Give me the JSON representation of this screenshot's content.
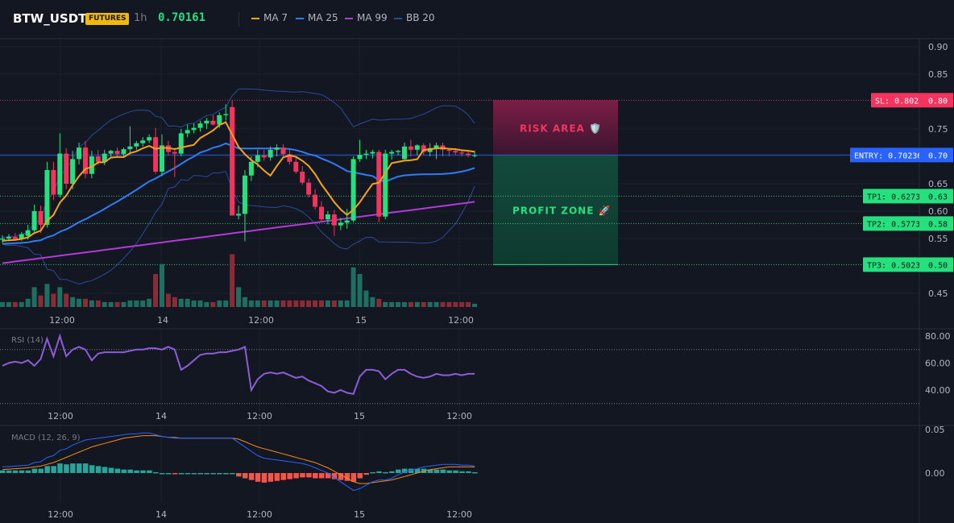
{
  "header": {
    "symbol": "BTW_USDT",
    "badge": "FUTURES",
    "timeframe": "1h",
    "last_price": "0.70161",
    "legend": [
      {
        "label": "MA 7",
        "color": "#f7a21b"
      },
      {
        "label": "MA 25",
        "color": "#2f7cf6"
      },
      {
        "label": "MA 99",
        "color": "#b23ad6"
      },
      {
        "label": "BB 20",
        "color": "#2b4a9a"
      }
    ]
  },
  "colors": {
    "background": "#131722",
    "grid": "#1e2230",
    "up": "#26e07f",
    "down": "#f2345e",
    "vol_up": "#1f6e62",
    "vol_down": "#8a2b36",
    "entry": "#2962ff",
    "sl": "#f2345e",
    "tp": "#26e07f",
    "rsi": "#8e5cd9",
    "macd": "#2962ff",
    "signal": "#f7891b",
    "hist_up": "#26a69a",
    "hist_down": "#f2564a"
  },
  "chart_data": {
    "type": "candlestick",
    "x_ticks": [
      "12:00",
      "14",
      "12:00",
      "15",
      "12:00"
    ],
    "y_ticks": [
      "0.90",
      "0.85",
      "0.75",
      "0.70",
      "0.65",
      "0.60",
      "0.55",
      "0.45"
    ],
    "ylim": [
      0.4,
      0.92
    ],
    "candles": [
      {
        "o": 0.548,
        "h": 0.556,
        "l": 0.542,
        "c": 0.55
      },
      {
        "o": 0.55,
        "h": 0.558,
        "l": 0.545,
        "c": 0.553
      },
      {
        "o": 0.553,
        "h": 0.56,
        "l": 0.547,
        "c": 0.549
      },
      {
        "o": 0.549,
        "h": 0.562,
        "l": 0.546,
        "c": 0.558
      },
      {
        "o": 0.555,
        "h": 0.575,
        "l": 0.548,
        "c": 0.565
      },
      {
        "o": 0.565,
        "h": 0.612,
        "l": 0.56,
        "c": 0.6
      },
      {
        "o": 0.6,
        "h": 0.61,
        "l": 0.56,
        "c": 0.575
      },
      {
        "o": 0.575,
        "h": 0.69,
        "l": 0.57,
        "c": 0.675
      },
      {
        "o": 0.675,
        "h": 0.69,
        "l": 0.62,
        "c": 0.63
      },
      {
        "o": 0.63,
        "h": 0.742,
        "l": 0.625,
        "c": 0.705
      },
      {
        "o": 0.705,
        "h": 0.715,
        "l": 0.64,
        "c": 0.65
      },
      {
        "o": 0.65,
        "h": 0.71,
        "l": 0.64,
        "c": 0.695
      },
      {
        "o": 0.695,
        "h": 0.725,
        "l": 0.685,
        "c": 0.716
      },
      {
        "o": 0.716,
        "h": 0.728,
        "l": 0.66,
        "c": 0.668
      },
      {
        "o": 0.668,
        "h": 0.71,
        "l": 0.66,
        "c": 0.7
      },
      {
        "o": 0.7,
        "h": 0.712,
        "l": 0.684,
        "c": 0.69
      },
      {
        "o": 0.69,
        "h": 0.712,
        "l": 0.684,
        "c": 0.705
      },
      {
        "o": 0.705,
        "h": 0.712,
        "l": 0.696,
        "c": 0.71
      },
      {
        "o": 0.71,
        "h": 0.716,
        "l": 0.698,
        "c": 0.704
      },
      {
        "o": 0.704,
        "h": 0.716,
        "l": 0.7,
        "c": 0.713
      },
      {
        "o": 0.713,
        "h": 0.755,
        "l": 0.704,
        "c": 0.718
      },
      {
        "o": 0.718,
        "h": 0.728,
        "l": 0.712,
        "c": 0.724
      },
      {
        "o": 0.724,
        "h": 0.735,
        "l": 0.718,
        "c": 0.729
      },
      {
        "o": 0.729,
        "h": 0.74,
        "l": 0.724,
        "c": 0.735
      },
      {
        "o": 0.735,
        "h": 0.752,
        "l": 0.668,
        "c": 0.672
      },
      {
        "o": 0.672,
        "h": 0.74,
        "l": 0.664,
        "c": 0.72
      },
      {
        "o": 0.72,
        "h": 0.728,
        "l": 0.702,
        "c": 0.708
      },
      {
        "o": 0.708,
        "h": 0.715,
        "l": 0.662,
        "c": 0.705
      },
      {
        "o": 0.705,
        "h": 0.75,
        "l": 0.7,
        "c": 0.742
      },
      {
        "o": 0.742,
        "h": 0.758,
        "l": 0.735,
        "c": 0.748
      },
      {
        "o": 0.748,
        "h": 0.76,
        "l": 0.742,
        "c": 0.752
      },
      {
        "o": 0.752,
        "h": 0.765,
        "l": 0.745,
        "c": 0.76
      },
      {
        "o": 0.76,
        "h": 0.77,
        "l": 0.75,
        "c": 0.765
      },
      {
        "o": 0.765,
        "h": 0.775,
        "l": 0.756,
        "c": 0.758
      },
      {
        "o": 0.758,
        "h": 0.78,
        "l": 0.752,
        "c": 0.775
      },
      {
        "o": 0.775,
        "h": 0.795,
        "l": 0.765,
        "c": 0.777
      },
      {
        "o": 0.79,
        "h": 0.802,
        "l": 0.592,
        "c": 0.592
      },
      {
        "o": 0.592,
        "h": 0.61,
        "l": 0.585,
        "c": 0.595
      },
      {
        "o": 0.595,
        "h": 0.675,
        "l": 0.545,
        "c": 0.665
      },
      {
        "o": 0.665,
        "h": 0.7,
        "l": 0.655,
        "c": 0.69
      },
      {
        "o": 0.69,
        "h": 0.712,
        "l": 0.68,
        "c": 0.702
      },
      {
        "o": 0.702,
        "h": 0.712,
        "l": 0.692,
        "c": 0.698
      },
      {
        "o": 0.698,
        "h": 0.718,
        "l": 0.692,
        "c": 0.712
      },
      {
        "o": 0.712,
        "h": 0.722,
        "l": 0.7,
        "c": 0.716
      },
      {
        "o": 0.716,
        "h": 0.722,
        "l": 0.7,
        "c": 0.704
      },
      {
        "o": 0.704,
        "h": 0.712,
        "l": 0.685,
        "c": 0.69
      },
      {
        "o": 0.69,
        "h": 0.7,
        "l": 0.668,
        "c": 0.672
      },
      {
        "o": 0.672,
        "h": 0.682,
        "l": 0.648,
        "c": 0.652
      },
      {
        "o": 0.652,
        "h": 0.66,
        "l": 0.625,
        "c": 0.63
      },
      {
        "o": 0.63,
        "h": 0.64,
        "l": 0.603,
        "c": 0.608
      },
      {
        "o": 0.608,
        "h": 0.618,
        "l": 0.58,
        "c": 0.585
      },
      {
        "o": 0.585,
        "h": 0.6,
        "l": 0.576,
        "c": 0.594
      },
      {
        "o": 0.594,
        "h": 0.602,
        "l": 0.555,
        "c": 0.574
      },
      {
        "o": 0.574,
        "h": 0.588,
        "l": 0.565,
        "c": 0.579
      },
      {
        "o": 0.579,
        "h": 0.604,
        "l": 0.568,
        "c": 0.583
      },
      {
        "o": 0.583,
        "h": 0.7,
        "l": 0.58,
        "c": 0.695
      },
      {
        "o": 0.695,
        "h": 0.73,
        "l": 0.69,
        "c": 0.703
      },
      {
        "o": 0.703,
        "h": 0.712,
        "l": 0.695,
        "c": 0.705
      },
      {
        "o": 0.705,
        "h": 0.712,
        "l": 0.696,
        "c": 0.708
      },
      {
        "o": 0.708,
        "h": 0.712,
        "l": 0.58,
        "c": 0.59
      },
      {
        "o": 0.59,
        "h": 0.712,
        "l": 0.585,
        "c": 0.705
      },
      {
        "o": 0.705,
        "h": 0.712,
        "l": 0.694,
        "c": 0.708
      },
      {
        "o": 0.708,
        "h": 0.712,
        "l": 0.702,
        "c": 0.71
      },
      {
        "o": 0.695,
        "h": 0.725,
        "l": 0.692,
        "c": 0.718
      },
      {
        "o": 0.718,
        "h": 0.73,
        "l": 0.7,
        "c": 0.712
      },
      {
        "o": 0.712,
        "h": 0.722,
        "l": 0.702,
        "c": 0.72
      },
      {
        "o": 0.72,
        "h": 0.724,
        "l": 0.703,
        "c": 0.708
      },
      {
        "o": 0.708,
        "h": 0.724,
        "l": 0.7,
        "c": 0.715
      },
      {
        "o": 0.715,
        "h": 0.725,
        "l": 0.695,
        "c": 0.72
      },
      {
        "o": 0.72,
        "h": 0.725,
        "l": 0.7,
        "c": 0.712
      },
      {
        "o": 0.712,
        "h": 0.715,
        "l": 0.7,
        "c": 0.71
      },
      {
        "o": 0.71,
        "h": 0.715,
        "l": 0.703,
        "c": 0.707
      },
      {
        "o": 0.707,
        "h": 0.712,
        "l": 0.7,
        "c": 0.705
      },
      {
        "o": 0.705,
        "h": 0.71,
        "l": 0.698,
        "c": 0.702
      },
      {
        "o": 0.702,
        "h": 0.71,
        "l": 0.698,
        "c": 0.702
      }
    ],
    "volume": [
      3,
      3,
      3,
      3,
      5,
      12,
      7,
      14,
      8,
      12,
      8,
      6,
      5,
      5,
      4,
      4,
      3,
      3,
      3,
      3,
      4,
      4,
      4,
      5,
      20,
      26,
      8,
      6,
      5,
      5,
      4,
      4,
      3,
      3,
      4,
      4,
      32,
      12,
      6,
      4,
      4,
      4,
      4,
      4,
      4,
      4,
      4,
      4,
      4,
      4,
      4,
      4,
      4,
      4,
      4,
      24,
      20,
      10,
      6,
      5,
      3,
      3,
      3,
      3,
      3,
      3,
      3,
      3,
      3,
      3,
      3,
      3,
      3,
      3,
      2
    ],
    "levels": {
      "sl": {
        "label": "SL: 0.80238",
        "value": "0.80"
      },
      "entry": {
        "label": "ENTRY: 0.70236",
        "value": "0.70"
      },
      "tp1": {
        "label": "TP1: 0.62735",
        "value": "0.63"
      },
      "tp2": {
        "label": "TP2: 0.57734",
        "value": "0.58"
      },
      "tp3": {
        "label": "TP3: 0.50232",
        "value": "0.50"
      }
    },
    "zones": {
      "risk_label": "RISK AREA 🛡️",
      "profit_label": "PROFIT ZONE 🚀"
    },
    "rsi": {
      "label": "RSI (14)",
      "y_ticks": [
        "80.00",
        "60.00",
        "40.00"
      ],
      "ylim": [
        25,
        85
      ],
      "upper": 70,
      "lower": 30,
      "values": [
        58,
        60,
        61,
        60,
        62,
        58,
        63,
        78,
        65,
        80,
        65,
        70,
        72,
        70,
        62,
        67,
        68,
        68,
        68,
        68,
        69,
        70,
        70,
        71,
        71,
        70,
        72,
        70,
        55,
        58,
        62,
        66,
        67,
        67,
        68,
        68,
        69,
        70,
        72,
        40,
        48,
        52,
        53,
        52,
        53,
        51,
        49,
        50,
        47,
        45,
        43,
        39,
        38,
        40,
        38,
        37,
        50,
        55,
        55,
        54,
        48,
        52,
        55,
        55,
        52,
        50,
        49,
        50,
        52,
        51,
        51,
        52,
        51,
        52,
        52
      ]
    },
    "macd": {
      "label": "MACD (12, 26, 9)",
      "y_ticks": [
        "0.05",
        "0.00"
      ],
      "ylim": [
        -0.032,
        0.055
      ],
      "macd": [
        0.007,
        0.0075,
        0.008,
        0.0085,
        0.009,
        0.012,
        0.013,
        0.018,
        0.02,
        0.026,
        0.028,
        0.032,
        0.035,
        0.038,
        0.039,
        0.04,
        0.041,
        0.042,
        0.043,
        0.044,
        0.045,
        0.045,
        0.046,
        0.046,
        0.044,
        0.042,
        0.041,
        0.04,
        0.04,
        0.04,
        0.04,
        0.04,
        0.04,
        0.04,
        0.04,
        0.04,
        0.04,
        0.035,
        0.03,
        0.025,
        0.02,
        0.017,
        0.016,
        0.015,
        0.014,
        0.013,
        0.012,
        0.011,
        0.009,
        0.006,
        0.003,
        0.0,
        -0.005,
        -0.01,
        -0.015,
        -0.02,
        -0.018,
        -0.014,
        -0.01,
        -0.008,
        -0.008,
        -0.006,
        -0.002,
        0.001,
        0.003,
        0.005,
        0.007,
        0.008,
        0.009,
        0.01,
        0.01,
        0.01,
        0.009,
        0.009,
        0.008
      ],
      "signal": [
        0.004,
        0.0045,
        0.005,
        0.0055,
        0.006,
        0.007,
        0.008,
        0.01,
        0.012,
        0.015,
        0.018,
        0.021,
        0.024,
        0.027,
        0.03,
        0.032,
        0.034,
        0.036,
        0.038,
        0.04,
        0.041,
        0.042,
        0.043,
        0.043,
        0.043,
        0.042,
        0.041,
        0.041,
        0.04,
        0.04,
        0.04,
        0.04,
        0.04,
        0.04,
        0.04,
        0.04,
        0.04,
        0.039,
        0.036,
        0.033,
        0.03,
        0.028,
        0.026,
        0.024,
        0.022,
        0.02,
        0.018,
        0.016,
        0.014,
        0.012,
        0.009,
        0.006,
        0.002,
        -0.002,
        -0.006,
        -0.01,
        -0.012,
        -0.012,
        -0.011,
        -0.01,
        -0.009,
        -0.008,
        -0.006,
        -0.004,
        -0.002,
        0.0,
        0.002,
        0.004,
        0.005,
        0.006,
        0.007,
        0.007,
        0.007,
        0.007,
        0.007
      ],
      "hist": [
        0.003,
        0.003,
        0.003,
        0.003,
        0.003,
        0.005,
        0.005,
        0.008,
        0.008,
        0.011,
        0.01,
        0.011,
        0.011,
        0.011,
        0.009,
        0.008,
        0.007,
        0.006,
        0.005,
        0.004,
        0.004,
        0.003,
        0.003,
        0.003,
        0.001,
        0.0,
        0.0,
        -0.001,
        0.0,
        0.0,
        0.0,
        0.0,
        0.0,
        0.0,
        0.0,
        0.0,
        0.0,
        -0.004,
        -0.006,
        -0.008,
        -0.01,
        -0.011,
        -0.01,
        -0.009,
        -0.008,
        -0.007,
        -0.006,
        -0.005,
        -0.005,
        -0.006,
        -0.006,
        -0.006,
        -0.007,
        -0.008,
        -0.009,
        -0.01,
        -0.006,
        -0.002,
        0.001,
        0.002,
        0.001,
        0.002,
        0.004,
        0.005,
        0.005,
        0.005,
        0.005,
        0.004,
        0.004,
        0.004,
        0.003,
        0.003,
        0.002,
        0.002,
        0.001
      ]
    }
  }
}
